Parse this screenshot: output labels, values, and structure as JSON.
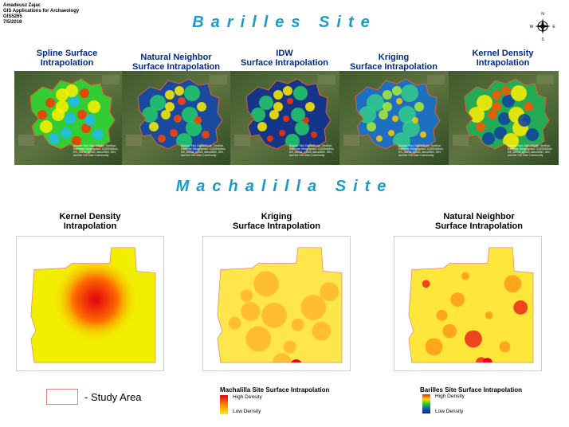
{
  "author": {
    "name": "Amadeusz Zajac",
    "course": "GIS Applications for Archaeology",
    "code": "GIS5265",
    "date": "7/5/2018"
  },
  "north_arrow": {
    "n": "N",
    "e": "E",
    "s": "S",
    "w": "W",
    "icon": "compass-rose-icon"
  },
  "barilles": {
    "title": "Barilles Site",
    "maps": [
      {
        "label": "Spline Surface\nIntrapolation",
        "key": "spline"
      },
      {
        "label": "Natural Neighbor\nSurface Intrapolation",
        "key": "natural-neighbor"
      },
      {
        "label": "IDW\nSurface Intrapolation",
        "key": "idw"
      },
      {
        "label": "Kriging\nSurface Intrapolation",
        "key": "kriging"
      },
      {
        "label": "Kernel Density\nIntrapolation",
        "key": "kernel-density"
      }
    ],
    "credit": "Source: Esri, DigitalGlobe, GeoEye, Earthstar Geographics, CNES/Airbus DS, USDA, USGS, AeroGRID, IGN, and the GIS User Community"
  },
  "machalilla": {
    "title": "Machalilla Site",
    "maps": [
      {
        "label": "Kernel Density\nIntrapolation",
        "key": "kernel-density"
      },
      {
        "label": "Kriging\nSurface Intrapolation",
        "key": "kriging"
      },
      {
        "label": "Natural Neighbor\nSurface Intrapolation",
        "key": "natural-neighbor"
      }
    ]
  },
  "legend": {
    "study_area": "- Study Area",
    "machalilla": {
      "title": "Machalilla Site Surface Intrapolation",
      "high": "High Density",
      "low": "Low Density",
      "colors": [
        "#e0001a",
        "#ffee00"
      ]
    },
    "barilles": {
      "title": "Barilles Site Surface Intrapolation",
      "high": "High Density",
      "low": "Low Density",
      "colors": [
        "#e02020",
        "#ffdd00",
        "#22cc22",
        "#1060b0",
        "#1a1a80"
      ]
    }
  }
}
